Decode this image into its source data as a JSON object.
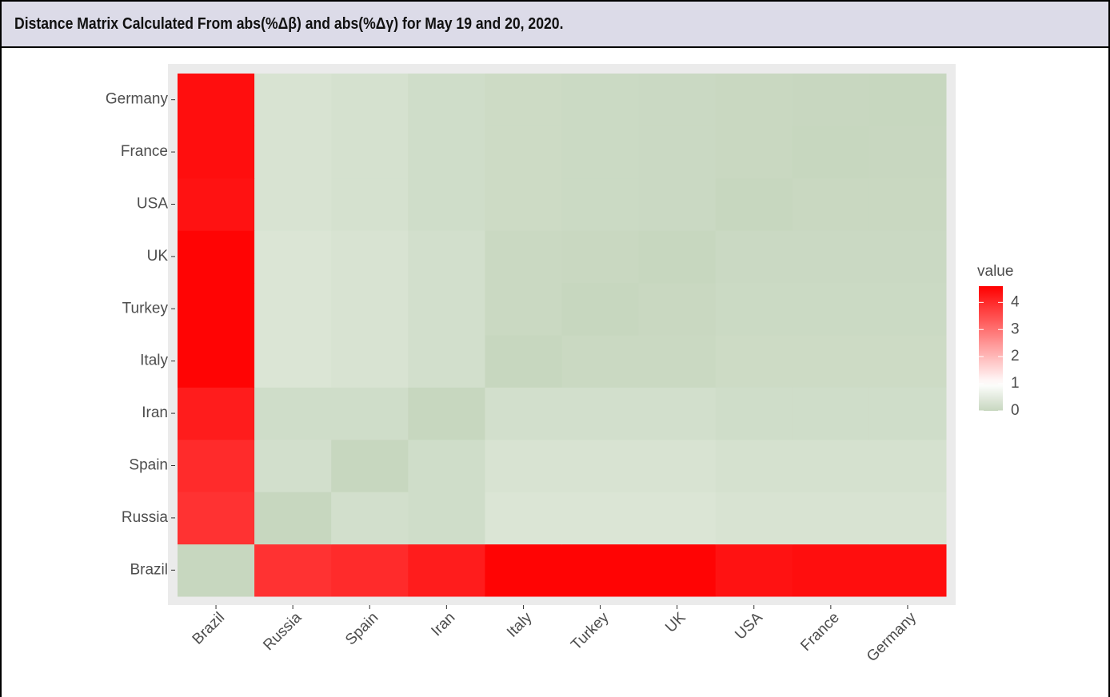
{
  "chart_data": {
    "type": "heatmap",
    "title": "Distance Matrix Calculated From abs(%Δβ) and abs(%Δγ) for May 19 and 20, 2020.",
    "x_categories": [
      "Brazil",
      "Russia",
      "Spain",
      "Iran",
      "Italy",
      "Turkey",
      "UK",
      "USA",
      "France",
      "Germany"
    ],
    "y_categories": [
      "Brazil",
      "Russia",
      "Spain",
      "Iran",
      "Italy",
      "Turkey",
      "UK",
      "USA",
      "France",
      "Germany"
    ],
    "values": [
      [
        0,
        3.9,
        4.0,
        4.2,
        4.55,
        4.55,
        4.55,
        4.35,
        4.4,
        4.4
      ],
      [
        3.9,
        0,
        0.2,
        0.15,
        0.35,
        0.35,
        0.35,
        0.3,
        0.3,
        0.3
      ],
      [
        4.0,
        0.2,
        0,
        0.15,
        0.3,
        0.3,
        0.3,
        0.25,
        0.25,
        0.25
      ],
      [
        4.2,
        0.15,
        0.15,
        0,
        0.2,
        0.2,
        0.2,
        0.15,
        0.15,
        0.15
      ],
      [
        4.55,
        0.35,
        0.3,
        0.2,
        0,
        0.05,
        0.05,
        0.1,
        0.1,
        0.1
      ],
      [
        4.55,
        0.35,
        0.3,
        0.2,
        0.05,
        0,
        0.03,
        0.08,
        0.08,
        0.08
      ],
      [
        4.55,
        0.35,
        0.3,
        0.2,
        0.05,
        0.03,
        0,
        0.06,
        0.06,
        0.06
      ],
      [
        4.35,
        0.3,
        0.25,
        0.15,
        0.1,
        0.08,
        0.06,
        0,
        0.03,
        0.03
      ],
      [
        4.4,
        0.3,
        0.25,
        0.15,
        0.1,
        0.08,
        0.06,
        0.03,
        0,
        0.01
      ],
      [
        4.4,
        0.3,
        0.25,
        0.15,
        0.1,
        0.08,
        0.06,
        0.03,
        0.01,
        0
      ]
    ],
    "legend_title": "value",
    "color_low": "#c7d7bf",
    "color_mid": "#ffffff",
    "color_high": "#ff0000",
    "color_midpoint": 1,
    "colorbar_lim": [
      0,
      4.6
    ],
    "colorbar_ticks": [
      0,
      1,
      2,
      3,
      4
    ]
  }
}
